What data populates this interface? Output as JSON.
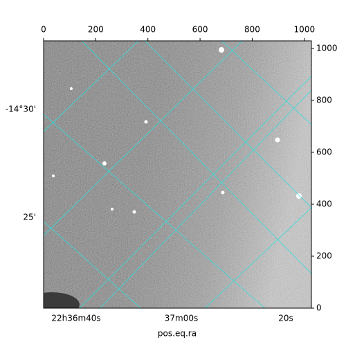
{
  "chart_data": {
    "type": "image",
    "xlabel": "pos.eq.ra",
    "xlim": [
      0,
      1027
    ],
    "ylim": [
      0,
      1029
    ],
    "xticks": [
      0,
      200,
      400,
      600,
      800,
      1000
    ],
    "yticks": [
      0,
      200,
      400,
      600,
      800,
      1000
    ],
    "ra_ticks": [
      "22h36m40s",
      "37m00s",
      "20s"
    ],
    "dec_ticks": [
      "-14°30'",
      "25'"
    ],
    "grid_color": "#33dddd"
  }
}
